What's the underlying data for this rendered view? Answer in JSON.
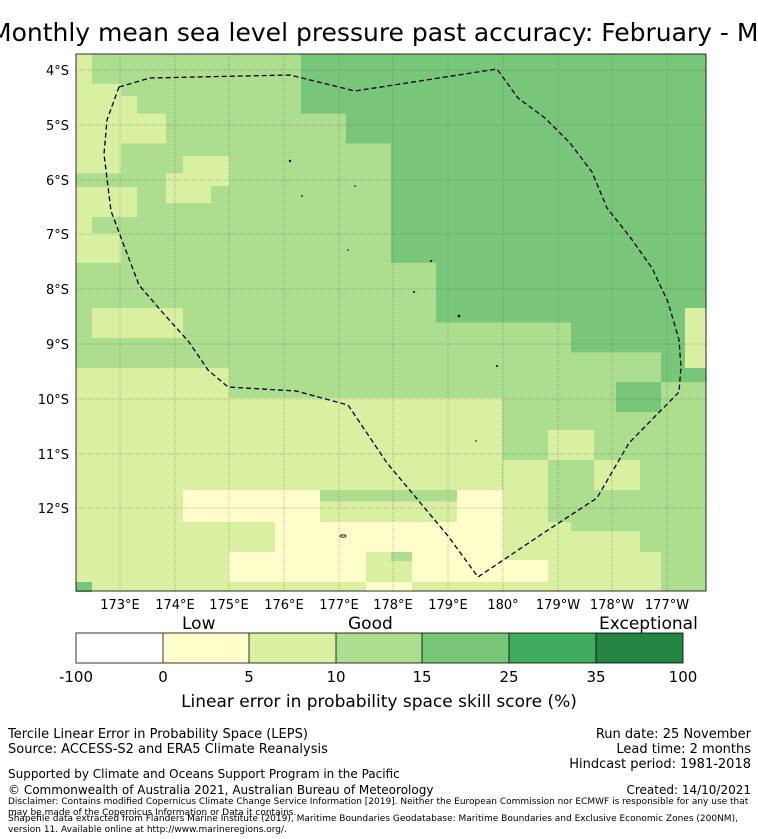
{
  "title": "Monthly mean sea level pressure past accuracy: February - March",
  "map": {
    "lat_labels": [
      "4°S",
      "5°S",
      "6°S",
      "7°S",
      "8°S",
      "9°S",
      "10°S",
      "11°S",
      "12°S"
    ],
    "lon_labels": [
      "173°E",
      "174°E",
      "175°E",
      "176°E",
      "177°E",
      "178°E",
      "179°E",
      "180°",
      "179°W",
      "178°W",
      "177°W"
    ],
    "lat_range": [
      -13.5,
      -3.8
    ],
    "lon_range": [
      172.2,
      183.7
    ],
    "colors": {
      "c0": "#ffffff",
      "c1": "#ffffcc",
      "c2": "#d9f0a3",
      "c3": "#addd8e",
      "c4": "#78c679",
      "c5": "#41ab5d",
      "c6": "#238443"
    }
  },
  "legend": {
    "class_labels": [
      "Low",
      "Good",
      "Exceptional"
    ],
    "ticks": [
      "-100",
      "0",
      "5",
      "10",
      "15",
      "25",
      "35",
      "100"
    ],
    "xlabel": "Linear error in probability space skill score (%)"
  },
  "footer": {
    "line1": "Tercile Linear Error in Probability Space (LEPS)",
    "line2": "Source: ACCESS-S2 and ERA5 Climate Reanalysis",
    "line3": "Supported by Climate and Oceans Support Program in the Pacific",
    "line4": "© Commonwealth of Australia 2021, Australian Bureau of Meteorology",
    "run_date": "Run date: 25 November",
    "lead_time": "Lead time: 2 months",
    "hindcast": "Hindcast period: 1981-2018",
    "created": "Created: 14/10/2021",
    "disclaimer": "Disclaimer: Contains modified Copernicus Climate Change Service Information [2019]. Neither the European Commission nor ECMWF is responsible for any use that may be made of the Copernicus Information or Data it contains.",
    "shapefile": "Shapefile data extracted from Flanders Marine Institute (2019), Maritime Boundaries Geodatabase: Maritime Boundaries and Exclusive Economic Zones (200NM), version 11. Available online at http://www.marineregions.org/."
  }
}
